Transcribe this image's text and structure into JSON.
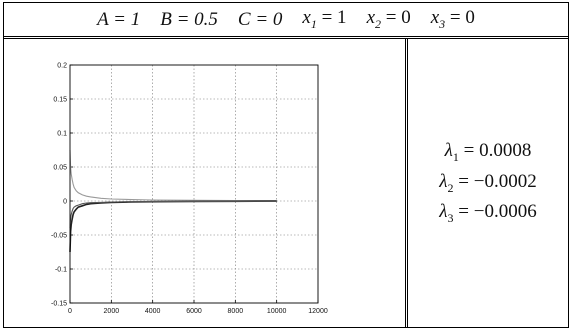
{
  "parameters": {
    "A": "A = 1",
    "B": "B = 0.5",
    "C": "C = 0",
    "x1": "x",
    "x1_val": " = 1",
    "x2": "x",
    "x2_val": " = 0",
    "x3": "x",
    "x3_val": " = 0"
  },
  "eigenvalues": [
    {
      "symbol": "λ",
      "sub": "1",
      "value": " = 0.0008"
    },
    {
      "symbol": "λ",
      "sub": "2",
      "value": " = −0.0002"
    },
    {
      "symbol": "λ",
      "sub": "3",
      "value": " = −0.0006"
    }
  ],
  "chart_data": {
    "type": "line",
    "title": "",
    "xlabel": "",
    "ylabel": "",
    "xlim": [
      0,
      12000
    ],
    "ylim": [
      -0.15,
      0.2
    ],
    "xticks": [
      "0",
      "2000",
      "4000",
      "6000",
      "8000",
      "10000",
      "12000"
    ],
    "yticks": [
      "-0.15",
      "-0.1",
      "-0.05",
      "0",
      "0.05",
      "0.1",
      "0.15",
      "0.2"
    ],
    "grid": true,
    "series": [
      {
        "color": "#9a9a9a",
        "x": [
          0,
          30,
          60,
          100,
          150,
          200,
          300,
          400,
          600,
          800,
          1000,
          1500,
          2000,
          3000,
          4000,
          6000,
          8000,
          10000
        ],
        "y": [
          0.075,
          0.05,
          0.04,
          0.032,
          0.025,
          0.02,
          0.015,
          0.012,
          0.009,
          0.007,
          0.006,
          0.004,
          0.003,
          0.002,
          0.0015,
          0.001,
          0.0008,
          0.0007
        ]
      },
      {
        "color": "#222222",
        "x": [
          0,
          30,
          60,
          100,
          150,
          200,
          300,
          400,
          600,
          800,
          1000,
          1500,
          2000,
          3000,
          4000,
          6000,
          8000,
          10000
        ],
        "y": [
          -0.075,
          -0.045,
          -0.035,
          -0.027,
          -0.02,
          -0.016,
          -0.012,
          -0.009,
          -0.007,
          -0.005,
          -0.004,
          -0.003,
          -0.002,
          -0.0015,
          -0.001,
          -0.0006,
          -0.0004,
          -0.0002
        ]
      },
      {
        "color": "#555555",
        "x": [
          0,
          30,
          60,
          100,
          150,
          200,
          300,
          400,
          600,
          800,
          1000,
          1500,
          2000,
          3000,
          4000,
          6000,
          8000,
          10000
        ],
        "y": [
          -0.04,
          -0.025,
          -0.02,
          -0.015,
          -0.011,
          -0.009,
          -0.007,
          -0.006,
          -0.004,
          -0.003,
          -0.0025,
          -0.002,
          -0.0015,
          -0.001,
          -0.0008,
          -0.0006,
          -0.0004,
          -0.0003
        ]
      }
    ]
  }
}
